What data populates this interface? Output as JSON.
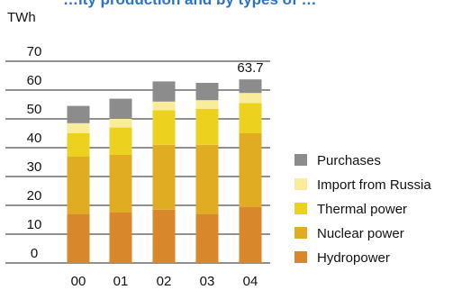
{
  "chart_data": {
    "type": "bar",
    "stacked": true,
    "title": "…ity production and by types of …",
    "ylabel": "TWh",
    "xlabel": "",
    "ylim": [
      0,
      70
    ],
    "yticks": [
      0,
      10,
      20,
      30,
      40,
      50,
      60,
      70
    ],
    "grid": true,
    "legend_position": "right",
    "categories": [
      "00",
      "01",
      "02",
      "03",
      "04"
    ],
    "series": [
      {
        "name": "Hydropower",
        "color": "#d8872a",
        "values": [
          17,
          17.5,
          18.5,
          17,
          19.5
        ]
      },
      {
        "name": "Nuclear power",
        "color": "#e0ad22",
        "values": [
          20,
          20,
          22.5,
          24,
          25.5
        ]
      },
      {
        "name": "Thermal power",
        "color": "#ecd11f",
        "values": [
          8,
          9.5,
          12,
          12.5,
          10.5
        ]
      },
      {
        "name": "Import from Russia",
        "color": "#f9ec9a",
        "values": [
          3.5,
          3,
          3,
          3,
          3.5
        ]
      },
      {
        "name": "Purchases",
        "color": "#8c8c8c",
        "values": [
          6,
          7,
          7,
          6,
          4.7
        ]
      }
    ],
    "annotations": [
      {
        "category": "04",
        "text": "63.7"
      }
    ]
  },
  "colors": {
    "title": "#2b73c9",
    "axis": "#222222",
    "grid": "#222222"
  }
}
